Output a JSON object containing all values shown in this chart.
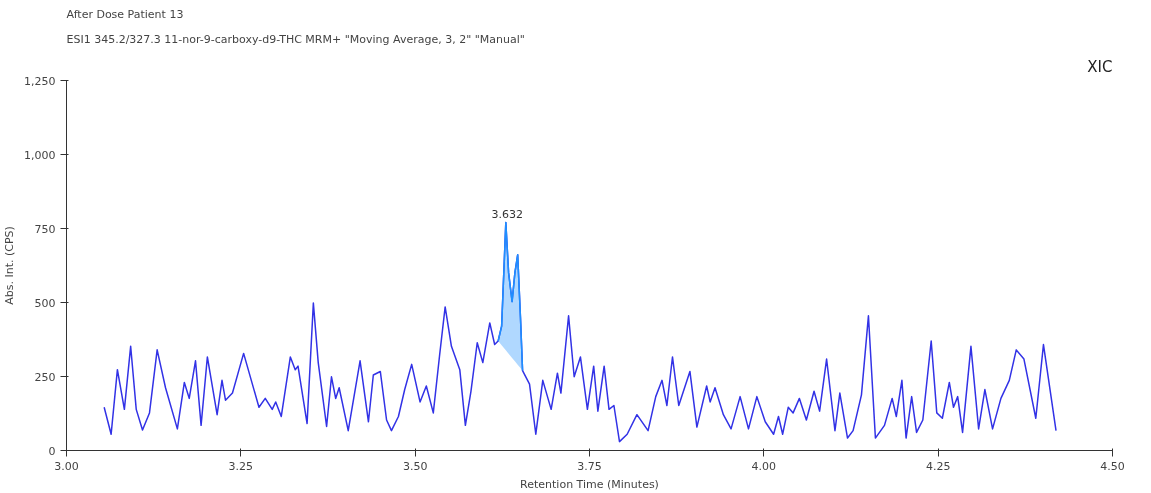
{
  "chart_data": {
    "type": "line",
    "title": "After Dose Patient 13",
    "subtitle": "ESI1 345.2/327.3 11-nor-9-carboxy-d9-THC MRM+ \"Moving Average, 3, 2\" \"Manual\"",
    "xlabel": "Retention Time (Minutes)",
    "ylabel": "Abs. Int. (CPS)",
    "annotations": [
      {
        "text": "3.632",
        "x": 3.632,
        "y": 772
      },
      "XIC"
    ],
    "xlim": [
      3.0,
      4.5
    ],
    "xticks": [
      {
        "value": 3.0,
        "label": "3.00"
      },
      3.25,
      {
        "value": 3.5,
        "label": "3.50"
      },
      3.75,
      {
        "value": 4.0,
        "label": "4.00"
      },
      4.25,
      {
        "value": 4.5,
        "label": "4.50"
      }
    ],
    "ylim": [
      0,
      1250
    ],
    "yticks": [
      0,
      250,
      500,
      750,
      {
        "value": 1000,
        "label": "1,000"
      },
      {
        "value": 1250,
        "label": "1,250"
      }
    ],
    "grid": false,
    "series": [
      {
        "color": "#3232e6",
        "x": [
          3.054,
          3.064,
          3.073,
          3.083,
          3.092,
          3.1,
          3.109,
          3.119,
          3.13,
          3.142,
          3.159,
          3.169,
          3.176,
          3.185,
          3.193,
          3.202,
          3.216,
          3.223,
          3.228,
          3.238,
          3.254,
          3.276,
          3.285,
          3.295,
          3.3,
          3.308,
          3.321,
          3.328,
          3.332,
          3.345,
          3.354,
          3.361,
          3.373,
          3.38,
          3.386,
          3.391,
          3.404,
          3.421,
          3.433,
          3.44,
          3.45,
          3.459,
          3.466,
          3.476,
          3.485,
          3.495,
          3.507,
          3.516,
          3.526,
          3.535,
          3.543,
          3.552,
          3.564,
          3.572,
          3.58,
          3.589,
          3.597,
          3.607,
          3.614,
          3.619,
          3.624,
          3.63,
          3.634,
          3.639,
          3.643,
          3.647,
          3.651,
          3.654,
          3.664,
          3.673,
          3.683,
          3.695,
          3.704,
          3.709,
          3.72,
          3.728,
          3.737,
          3.747,
          3.756,
          3.762,
          3.771,
          3.778,
          3.785,
          3.793,
          3.804,
          3.818,
          3.834,
          3.845,
          3.854,
          3.861,
          3.869,
          3.878,
          3.894,
          3.904,
          3.918,
          3.923,
          3.93,
          3.942,
          3.953,
          3.966,
          3.978,
          3.99,
          4.002,
          4.014,
          4.021,
          4.027,
          4.035,
          4.042,
          4.051,
          4.061,
          4.072,
          4.08,
          4.09,
          4.102,
          4.109,
          4.12,
          4.128,
          4.14,
          4.15,
          4.16,
          4.173,
          4.184,
          4.19,
          4.198,
          4.204,
          4.212,
          4.219,
          4.228,
          4.24,
          4.248,
          4.256,
          4.266,
          4.272,
          4.278,
          4.285,
          4.297,
          4.308,
          4.317,
          4.328,
          4.34,
          4.352,
          4.362,
          4.373,
          4.39,
          4.401,
          4.419
        ],
        "values": [
          146,
          55,
          273,
          139,
          352,
          139,
          69,
          127,
          340,
          212,
          73,
          230,
          176,
          303,
          85,
          316,
          121,
          237,
          170,
          194,
          328,
          146,
          176,
          139,
          164,
          115,
          316,
          273,
          285,
          91,
          498,
          297,
          81,
          249,
          176,
          212,
          67,
          303,
          97,
          255,
          267,
          103,
          67,
          115,
          206,
          291,
          164,
          218,
          127,
          321,
          485,
          352,
          273,
          85,
          200,
          364,
          297,
          431,
          358,
          370,
          420,
          770,
          600,
          503,
          600,
          661,
          450,
          270,
          224,
          55,
          237,
          139,
          261,
          194,
          455,
          249,
          316,
          139,
          285,
          133,
          285,
          139,
          152,
          30,
          55,
          121,
          67,
          182,
          237,
          152,
          316,
          152,
          267,
          79,
          218,
          164,
          212,
          121,
          73,
          182,
          73,
          182,
          97,
          55,
          115,
          55,
          146,
          127,
          176,
          103,
          200,
          133,
          309,
          67,
          194,
          42,
          67,
          188,
          455,
          42,
          85,
          176,
          115,
          237,
          42,
          182,
          61,
          103,
          370,
          127,
          109,
          230,
          146,
          182,
          61,
          352,
          73,
          206,
          73,
          176,
          237,
          340,
          309,
          109,
          358,
          67
        ]
      },
      {
        "type": "area",
        "color": "#1e90ff",
        "x": [
          3.619,
          3.624,
          3.63,
          3.634,
          3.639,
          3.643,
          3.647,
          3.651,
          3.654
        ],
        "values": [
          370,
          420,
          770,
          600,
          503,
          600,
          661,
          450,
          270
        ]
      }
    ]
  }
}
